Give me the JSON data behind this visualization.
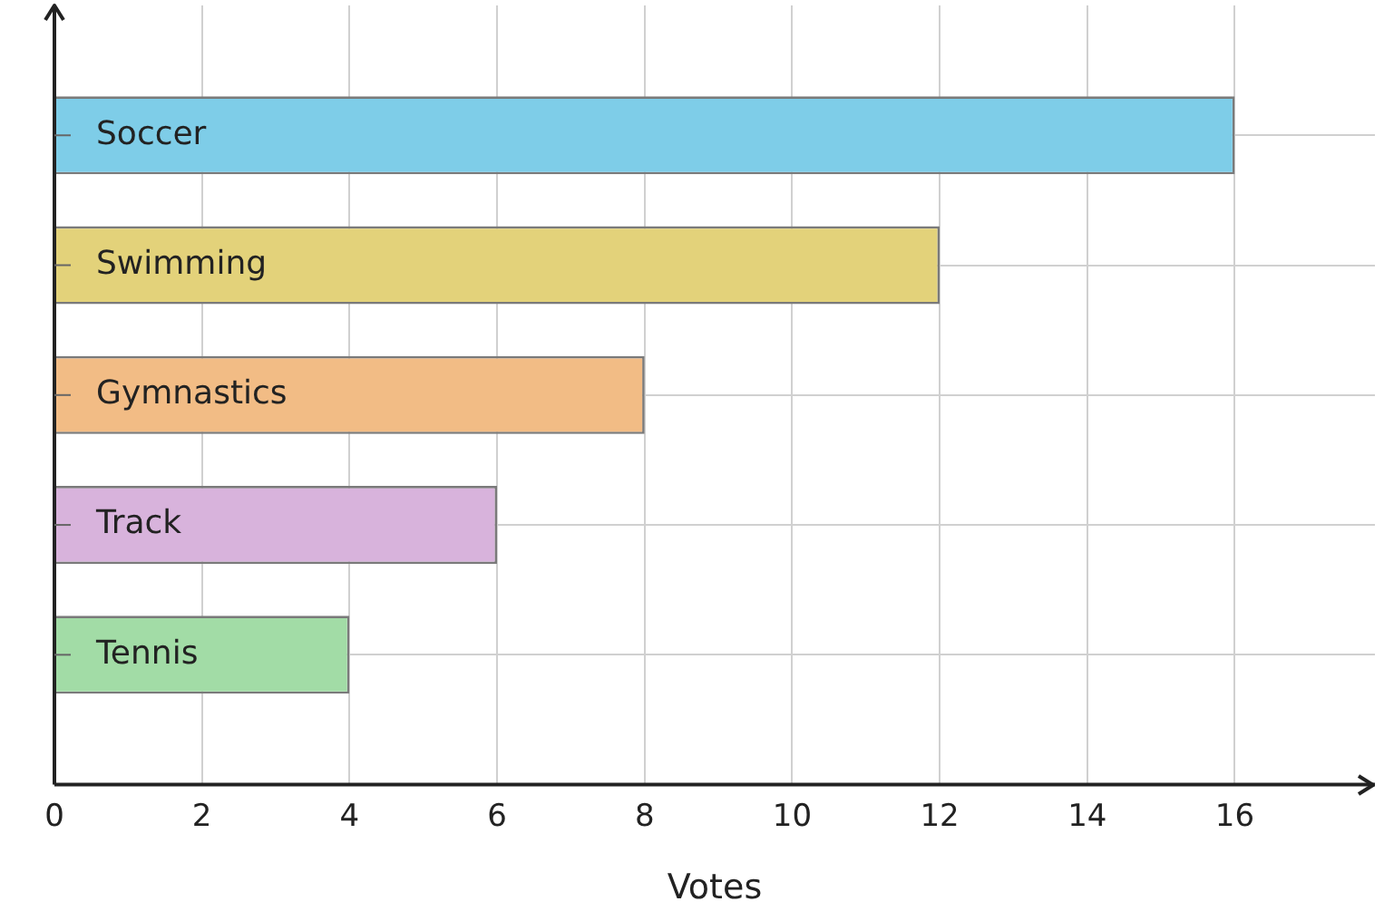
{
  "chart_data": {
    "type": "bar",
    "orientation": "horizontal",
    "xlabel": "Votes",
    "categories": [
      "Soccer",
      "Swimming",
      "Gymnastics",
      "Track",
      "Tennis"
    ],
    "values": [
      16,
      12,
      8,
      6,
      4
    ],
    "colors": [
      "#7ecde8",
      "#e3d27a",
      "#f2bc85",
      "#d8b3dc",
      "#a2dca6"
    ],
    "xlim": [
      0,
      17.9
    ],
    "xticks": [
      0,
      2,
      4,
      6,
      8,
      10,
      12,
      14,
      16
    ],
    "grid": true,
    "legend": false
  }
}
